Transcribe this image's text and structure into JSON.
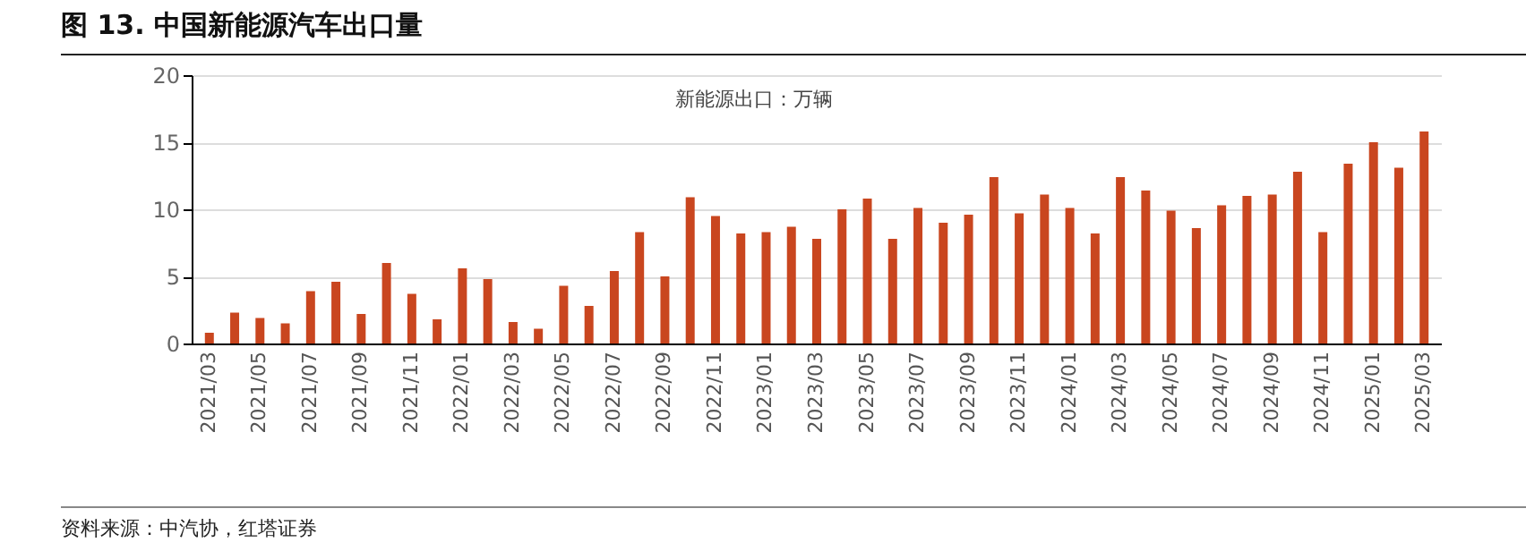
{
  "chart_data": {
    "type": "bar",
    "title": "图 13. 中国新能源汽车出口量",
    "categories": [
      "2021/03",
      null,
      "2021/05",
      null,
      "2021/07",
      null,
      "2021/09",
      null,
      "2021/11",
      null,
      "2022/01",
      null,
      "2022/03",
      null,
      "2022/05",
      null,
      "2022/07",
      null,
      "2022/09",
      null,
      "2022/11",
      null,
      "2023/01",
      null,
      "2023/03",
      null,
      "2023/05",
      null,
      "2023/07",
      null,
      "2023/09",
      null,
      "2023/11",
      null,
      "2024/01",
      null,
      "2024/03",
      null,
      "2024/05",
      null,
      "2024/07",
      null,
      "2024/09",
      null,
      "2024/11",
      null,
      "2025/01",
      null,
      "2025/03"
    ],
    "series": [
      {
        "color": "#c9461f",
        "values": [
          0.8,
          2.3,
          1.9,
          1.5,
          3.9,
          4.6,
          2.2,
          6.0,
          3.7,
          1.8,
          5.6,
          4.8,
          1.6,
          1.1,
          4.3,
          2.8,
          5.4,
          8.3,
          5.0,
          10.9,
          9.5,
          8.2,
          8.3,
          8.7,
          7.8,
          10.0,
          10.8,
          7.8,
          10.1,
          9.0,
          9.6,
          12.4,
          9.7,
          11.1,
          10.1,
          8.2,
          12.4,
          11.4,
          9.9,
          8.6,
          10.3,
          11.0,
          11.1,
          12.8,
          8.3,
          13.4,
          15.0,
          13.1,
          15.8
        ]
      }
    ],
    "ylim": [
      0,
      20
    ],
    "yticks": [
      0,
      5,
      10,
      15,
      20
    ],
    "grid": "y",
    "annotations": [
      "新能源出口：万辆",
      "资料来源：中汽协，红塔证券"
    ]
  }
}
